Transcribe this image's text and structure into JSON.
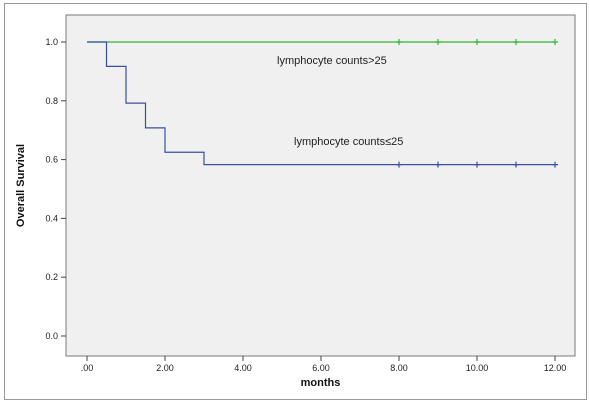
{
  "chart_data": {
    "type": "line",
    "title": "",
    "xlabel": "months",
    "ylabel": "Overall Survival",
    "xlim": [
      0,
      12
    ],
    "ylim": [
      0,
      1
    ],
    "x_ticks": [
      ".00",
      "2.00",
      "4.00",
      "6.00",
      "8.00",
      "10.00",
      "12.00"
    ],
    "y_ticks": [
      "0.0",
      "0.2",
      "0.4",
      "0.6",
      "0.8",
      "1.0"
    ],
    "grid": false,
    "plot_background": "#f0f0f0",
    "series": [
      {
        "name": "lymphocyte counts>25",
        "color": "#33b533",
        "step": true,
        "points": [
          [
            0,
            1.0
          ],
          [
            12,
            1.0
          ]
        ],
        "censor_x": [
          8,
          9,
          10,
          11,
          12
        ]
      },
      {
        "name": "lymphocyte counts≤25",
        "color": "#3a4fa3",
        "step": true,
        "points": [
          [
            0,
            1.0
          ],
          [
            0.5,
            0.917
          ],
          [
            1.0,
            0.792
          ],
          [
            1.5,
            0.708
          ],
          [
            2.0,
            0.625
          ],
          [
            3.0,
            0.583
          ],
          [
            12,
            0.583
          ]
        ],
        "censor_x": [
          8,
          9,
          10,
          11,
          12
        ]
      }
    ]
  }
}
